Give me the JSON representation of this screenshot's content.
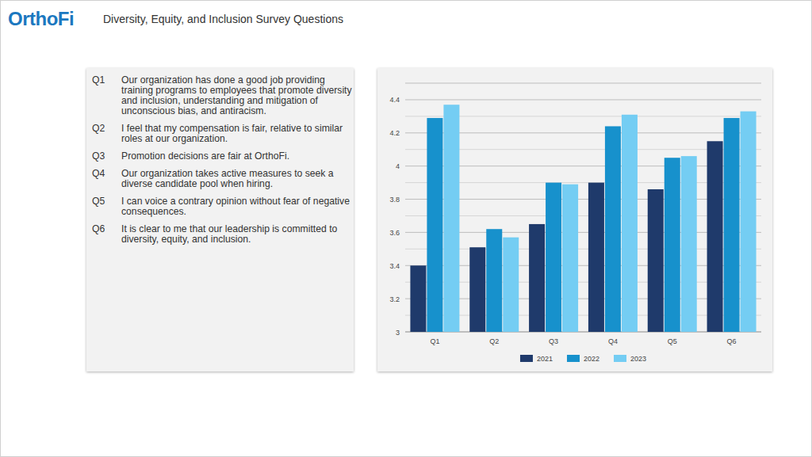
{
  "header": {
    "logo": "OrthoFi",
    "title": "Diversity, Equity, and Inclusion Survey Questions"
  },
  "questions": [
    {
      "id": "Q1",
      "text": "Our organization has done a good job providing training programs to employees that promote diversity and inclusion, understanding and mitigation of unconscious bias, and antiracism."
    },
    {
      "id": "Q2",
      "text": "I feel that my compensation is fair, relative to similar roles at our organization."
    },
    {
      "id": "Q3",
      "text": "Promotion decisions are fair at OrthoFi."
    },
    {
      "id": "Q4",
      "text": "Our organization takes active measures to seek a diverse candidate pool when hiring."
    },
    {
      "id": "Q5",
      "text": "I can voice a contrary opinion without fear of negative consequences."
    },
    {
      "id": "Q6",
      "text": "It is clear to me that our leadership is committed to diversity, equity, and inclusion."
    }
  ],
  "chart_data": {
    "type": "bar",
    "categories": [
      "Q1",
      "Q2",
      "Q3",
      "Q4",
      "Q5",
      "Q6"
    ],
    "series": [
      {
        "name": "2021",
        "color": "#1f3a6b",
        "values": [
          3.4,
          3.51,
          3.65,
          3.9,
          3.86,
          4.15
        ]
      },
      {
        "name": "2022",
        "color": "#1791cc",
        "values": [
          4.29,
          3.62,
          3.9,
          4.24,
          4.05,
          4.29
        ]
      },
      {
        "name": "2023",
        "color": "#74cdf3",
        "values": [
          4.37,
          3.57,
          3.89,
          4.31,
          4.06,
          4.33
        ]
      }
    ],
    "ylim": [
      3,
      4.5
    ],
    "yticks": [
      3,
      3.2,
      3.4,
      3.6,
      3.8,
      4,
      4.2,
      4.4
    ],
    "grid": true,
    "legend": "bottom"
  }
}
